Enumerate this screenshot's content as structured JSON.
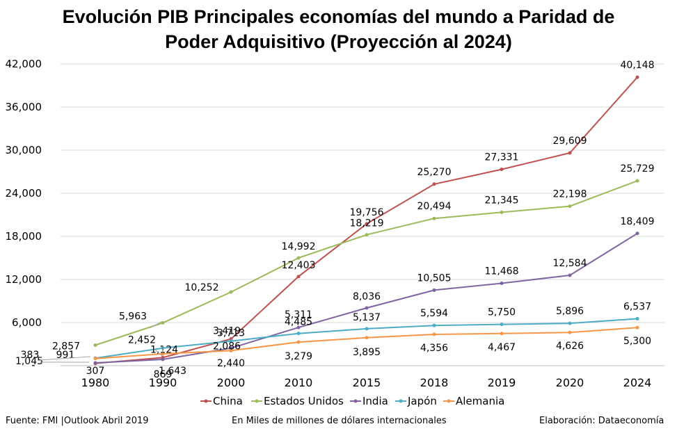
{
  "chart_data": {
    "type": "line",
    "title_line1": "Evolución PIB Principales economías del mundo a Paridad de",
    "title_line2": "Poder Adquisitivo (Proyección al 2024)",
    "categories": [
      "1980",
      "1990",
      "2000",
      "2010",
      "2015",
      "2018",
      "2019",
      "2020",
      "2024"
    ],
    "ylim": [
      0,
      42000
    ],
    "yticks": [
      6000,
      12000,
      18000,
      24000,
      30000,
      36000,
      42000
    ],
    "ytick_labels": [
      "6,000",
      "12,000",
      "18,000",
      "24,000",
      "30,000",
      "36,000",
      "42,000"
    ],
    "grid": true,
    "legend_position": "bottom",
    "series": [
      {
        "name": "China",
        "color": "#c0504d",
        "values": [
          307,
          1124,
          3713,
          12403,
          19756,
          25270,
          27331,
          29609,
          40148
        ],
        "labels": [
          "307",
          "1,124",
          "3,713",
          "12,403",
          "19,756",
          "25,270",
          "27,331",
          "29,609",
          "40,148"
        ]
      },
      {
        "name": "Estados Unidos",
        "color": "#9bbb59",
        "values": [
          2857,
          5963,
          10252,
          14992,
          18219,
          20494,
          21345,
          22198,
          25729
        ],
        "labels": [
          "2,857",
          "5,963",
          "10,252",
          "14,992",
          "18,219",
          "20,494",
          "21,345",
          "22,198",
          "25,729"
        ]
      },
      {
        "name": "India",
        "color": "#8064a2",
        "values": [
          383,
          869,
          2440,
          5311,
          8036,
          10505,
          11468,
          12584,
          18409
        ],
        "labels": [
          "383",
          "869",
          "2,440",
          "5,311",
          "8,036",
          "10,505",
          "11,468",
          "12,584",
          "18,409"
        ]
      },
      {
        "name": "Japón",
        "color": "#4bacc6",
        "values": [
          1045,
          2452,
          3419,
          4485,
          5137,
          5594,
          5750,
          5896,
          6537
        ],
        "labels": [
          "1,045",
          "2,452",
          "3,419",
          "4,485",
          "5,137",
          "5,594",
          "5,750",
          "5,896",
          "6,537"
        ]
      },
      {
        "name": "Alemania",
        "color": "#f79646",
        "values": [
          991,
          1643,
          2086,
          3279,
          3895,
          4356,
          4467,
          4626,
          5300
        ],
        "labels": [
          "991",
          "1,643",
          "2,086",
          "3,279",
          "3,895",
          "4,356",
          "4,467",
          "4,626",
          "5,300"
        ]
      }
    ],
    "zero_tick_label": "-"
  },
  "footer": {
    "source": "Fuente: FMI |Outlook Abril 2019",
    "units": "En Miles de millones de dólares internacionales",
    "credit": "Elaboración: Dataeconomía"
  }
}
